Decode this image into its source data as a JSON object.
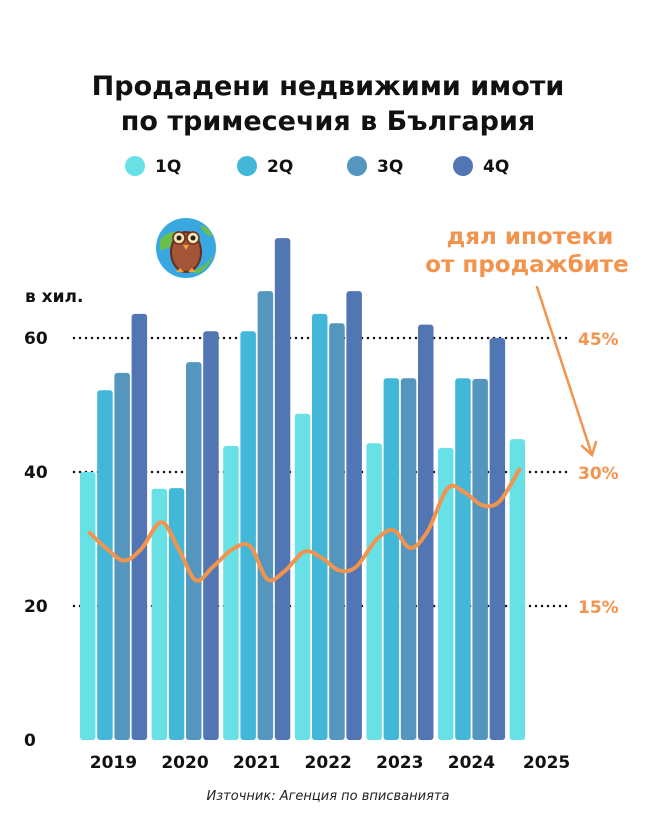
{
  "chart_data": {
    "type": "bar",
    "title_lines": [
      "Продадени недвижими имоти",
      "по тримесечия в България"
    ],
    "ylabel": "в хил.",
    "ylim": [
      0,
      80
    ],
    "yticks": [
      "0",
      "20",
      "40",
      "60"
    ],
    "y2ticks": [
      "15%",
      "30%",
      "45%"
    ],
    "y2lim": [
      0,
      45
    ],
    "categories": [
      "2019",
      "2020",
      "2021",
      "2022",
      "2023",
      "2024",
      "2025"
    ],
    "series": [
      {
        "name": "1Q",
        "color": "#67e0e6",
        "values": [
          40.0,
          37.5,
          43.9,
          48.7,
          44.3,
          43.6,
          44.9
        ]
      },
      {
        "name": "2Q",
        "color": "#43b7d8",
        "values": [
          52.2,
          37.6,
          61.0,
          63.6,
          54.0,
          54.0,
          null
        ]
      },
      {
        "name": "3Q",
        "color": "#5496bd",
        "values": [
          54.8,
          56.4,
          67.0,
          62.2,
          54.0,
          53.9,
          null
        ]
      },
      {
        "name": "4Q",
        "color": "#5275b3",
        "values": [
          63.6,
          61.0,
          74.9,
          67.0,
          62.0,
          60.0,
          null
        ]
      }
    ],
    "line": {
      "name": "дял ипотеки от продажбите",
      "label_lines": [
        "дял ипотеки",
        "от продажбите"
      ],
      "color": "#f2944e",
      "unit": "%",
      "values": [
        23.3,
        21.5,
        20.2,
        21.5,
        24.5,
        21.5,
        18.0,
        19.5,
        21.5,
        21.8,
        18.1,
        19.0,
        21.2,
        20.5,
        19.1,
        19.5,
        22.5,
        23.6,
        21.6,
        23.5,
        28.3,
        27.8,
        26.4,
        26.8,
        30.4
      ]
    },
    "grid": "dotted at 20, 40, 60",
    "legend": "top-center"
  },
  "source": "Източник: Агенция по вписванията"
}
